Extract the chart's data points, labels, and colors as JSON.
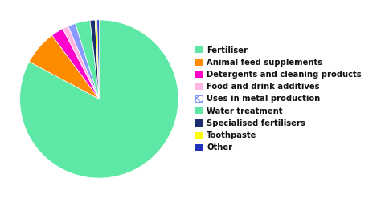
{
  "labels": [
    "Fertiliser",
    "Animal feed supplements",
    "Detergents and cleaning products",
    "Food and drink additives",
    "Uses in metal production",
    "Water treatment",
    "Specialised fertilisers",
    "Toothpaste",
    "Other"
  ],
  "values": [
    82,
    7,
    2.5,
    1.2,
    1.5,
    3,
    1,
    0.4,
    0.4
  ],
  "colors": [
    "#5de8a5",
    "#ff8c00",
    "#ff00cc",
    "#ffb6e0",
    "#8899ff",
    "#5de8a5",
    "#1a2e6e",
    "#ffff00",
    "#2233bb"
  ],
  "legend_labels": [
    "Fertiliser",
    "Animal feed supplements",
    "Detergents and cleaning products",
    "Food and drink additives",
    "Uses in metal production",
    "Water treatment",
    "Specialised fertilisers",
    "Toothpaste",
    "Other"
  ],
  "legend_colors": [
    "#5de8a5",
    "#ff8c00",
    "#ff00cc",
    "#ffb6e0",
    "#8899ff",
    "#5de8a5",
    "#1a2e6e",
    "#ffff00",
    "#2233bb"
  ],
  "background_color": "#ffffff",
  "startangle": 90,
  "legend_fontsize": 7.2,
  "hatch_label": "Uses in metal production",
  "hatch_color": "#8899ff"
}
